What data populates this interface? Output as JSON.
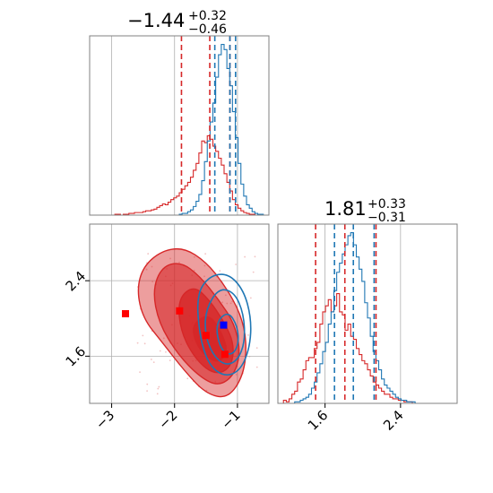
{
  "chart_data": {
    "type": "corner",
    "colors": {
      "red": "#d62728",
      "blue": "#1f77b4",
      "red_fill": "#e88a8b",
      "grid": "#b0b0b0",
      "frame": "#808080"
    },
    "parameters": [
      {
        "index": 0,
        "range": [
          -3.35,
          -0.5
        ],
        "ticks": [
          -3,
          -2,
          -1
        ],
        "tick_labels": [
          "−3",
          "−2",
          "−1"
        ]
      },
      {
        "index": 1,
        "range": [
          1.1,
          3.0
        ],
        "ticks": [
          1.6,
          2.4
        ],
        "tick_labels": [
          "1.6",
          "2.4"
        ]
      }
    ],
    "marginals": [
      {
        "parameter": 0,
        "title": {
          "value": "−1.44",
          "plus": "+0.32",
          "minus": "−0.46"
        },
        "red_quantiles": [
          -1.89,
          -1.44,
          -1.12
        ],
        "blue_quantiles": [
          -1.36,
          -1.12,
          -1.03
        ],
        "red_hist": {
          "range": [
            -3.35,
            -0.5
          ],
          "bins": 64,
          "counts": [
            0,
            0,
            0,
            0,
            0,
            0,
            0,
            0,
            0,
            1,
            1,
            0,
            1,
            1,
            2,
            2,
            3,
            3,
            3,
            4,
            5,
            5,
            6,
            7,
            9,
            11,
            13,
            12,
            15,
            18,
            20,
            22,
            26,
            30,
            34,
            38,
            44,
            52,
            60,
            72,
            86,
            84,
            92,
            88,
            80,
            74,
            66,
            58,
            48,
            38,
            28,
            18,
            12,
            8,
            5,
            3,
            2,
            1,
            1,
            0,
            0,
            0,
            0,
            0
          ]
        },
        "blue_hist": {
          "range": [
            -3.35,
            -0.5
          ],
          "bins": 64,
          "counts": [
            0,
            0,
            0,
            0,
            0,
            0,
            0,
            0,
            0,
            0,
            0,
            0,
            0,
            0,
            0,
            0,
            0,
            0,
            0,
            0,
            0,
            0,
            0,
            0,
            0,
            0,
            0,
            0,
            0,
            0,
            0,
            0,
            1,
            2,
            2,
            4,
            6,
            10,
            16,
            24,
            40,
            62,
            86,
            108,
            130,
            160,
            186,
            198,
            192,
            170,
            150,
            120,
            90,
            60,
            36,
            22,
            12,
            8,
            4,
            2,
            1,
            1,
            0,
            0
          ]
        }
      },
      {
        "parameter": 1,
        "title": {
          "value": "1.81",
          "plus": "+0.33",
          "minus": "−0.31"
        },
        "red_quantiles": [
          1.5,
          1.81,
          2.14
        ],
        "blue_quantiles": [
          1.7,
          1.9,
          2.12
        ],
        "red_hist": {
          "range": [
            1.1,
            3.0
          ],
          "bins": 64,
          "counts": [
            0,
            0,
            2,
            1,
            3,
            6,
            8,
            14,
            16,
            22,
            28,
            30,
            30,
            36,
            40,
            52,
            60,
            64,
            68,
            60,
            64,
            72,
            60,
            58,
            48,
            52,
            44,
            42,
            36,
            32,
            28,
            26,
            22,
            18,
            14,
            12,
            10,
            8,
            6,
            6,
            4,
            3,
            3,
            2,
            2,
            1,
            1,
            1,
            0,
            0,
            0,
            0,
            0,
            0,
            0,
            0,
            0,
            0,
            0,
            0,
            0,
            0,
            0,
            0
          ]
        },
        "blue_hist": {
          "range": [
            1.1,
            3.0
          ],
          "bins": 64,
          "counts": [
            0,
            0,
            0,
            0,
            0,
            0,
            1,
            1,
            2,
            3,
            4,
            6,
            10,
            14,
            20,
            26,
            34,
            40,
            52,
            60,
            74,
            86,
            92,
            98,
            104,
            110,
            112,
            104,
            96,
            88,
            80,
            66,
            56,
            44,
            34,
            28,
            22,
            16,
            12,
            10,
            8,
            6,
            4,
            3,
            2,
            2,
            1,
            1,
            1,
            0,
            0,
            0,
            0,
            0,
            0,
            0,
            0,
            0,
            0,
            0,
            0,
            0,
            0,
            0
          ]
        }
      }
    ],
    "joint": {
      "x_parameter": 0,
      "y_parameter": 1,
      "red_contours": [
        [
          [
            -2.6,
            2.3
          ],
          [
            -2.5,
            2.55
          ],
          [
            -2.2,
            2.72
          ],
          [
            -1.85,
            2.75
          ],
          [
            -1.5,
            2.6
          ],
          [
            -1.2,
            2.35
          ],
          [
            -0.95,
            2.05
          ],
          [
            -0.85,
            1.75
          ],
          [
            -0.9,
            1.4
          ],
          [
            -1.15,
            1.15
          ],
          [
            -1.5,
            1.2
          ],
          [
            -1.85,
            1.45
          ],
          [
            -2.2,
            1.75
          ],
          [
            -2.5,
            2.0
          ]
        ],
        [
          [
            -2.35,
            2.3
          ],
          [
            -2.2,
            2.55
          ],
          [
            -1.9,
            2.6
          ],
          [
            -1.6,
            2.45
          ],
          [
            -1.3,
            2.2
          ],
          [
            -1.05,
            1.95
          ],
          [
            -0.95,
            1.65
          ],
          [
            -1.05,
            1.4
          ],
          [
            -1.3,
            1.28
          ],
          [
            -1.6,
            1.38
          ],
          [
            -1.95,
            1.62
          ],
          [
            -2.25,
            1.95
          ]
        ],
        [
          [
            -1.95,
            2.2
          ],
          [
            -1.7,
            2.35
          ],
          [
            -1.45,
            2.2
          ],
          [
            -1.2,
            1.95
          ],
          [
            -1.05,
            1.72
          ],
          [
            -1.1,
            1.48
          ],
          [
            -1.35,
            1.4
          ],
          [
            -1.65,
            1.55
          ],
          [
            -1.9,
            1.85
          ]
        ],
        [
          [
            -1.7,
            1.95
          ],
          [
            -1.45,
            2.05
          ],
          [
            -1.25,
            1.85
          ],
          [
            -1.15,
            1.65
          ],
          [
            -1.3,
            1.52
          ],
          [
            -1.55,
            1.62
          ],
          [
            -1.7,
            1.8
          ]
        ]
      ],
      "blue_contours": [
        [
          [
            -1.65,
            2.25
          ],
          [
            -1.45,
            2.45
          ],
          [
            -1.15,
            2.48
          ],
          [
            -0.9,
            2.3
          ],
          [
            -0.78,
            2.0
          ],
          [
            -0.8,
            1.7
          ],
          [
            -0.95,
            1.45
          ],
          [
            -1.2,
            1.38
          ],
          [
            -1.45,
            1.5
          ],
          [
            -1.6,
            1.8
          ]
        ],
        [
          [
            -1.5,
            2.1
          ],
          [
            -1.3,
            2.32
          ],
          [
            -1.05,
            2.28
          ],
          [
            -0.9,
            2.05
          ],
          [
            -0.88,
            1.75
          ],
          [
            -1.0,
            1.55
          ],
          [
            -1.2,
            1.5
          ],
          [
            -1.4,
            1.62
          ],
          [
            -1.52,
            1.85
          ]
        ],
        [
          [
            -1.35,
            1.95
          ],
          [
            -1.15,
            2.08
          ],
          [
            -1.0,
            1.92
          ],
          [
            -0.98,
            1.72
          ],
          [
            -1.1,
            1.6
          ],
          [
            -1.28,
            1.68
          ]
        ]
      ],
      "red_points": [
        [
          -2.78,
          2.05
        ],
        [
          -1.92,
          2.08
        ],
        [
          -1.5,
          1.82
        ],
        [
          -1.2,
          1.62
        ]
      ],
      "blue_points": [
        [
          -1.22,
          1.93
        ]
      ]
    }
  }
}
